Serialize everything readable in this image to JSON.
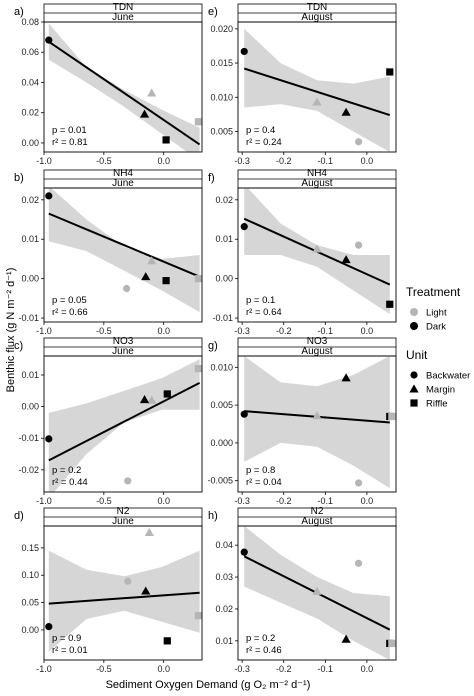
{
  "chart_data": {
    "type": "scatter",
    "xlabel": "Sediment Oxygen Demand (g O₂ m⁻² d⁻¹)",
    "ylabel": "Benthic flux (g N m⁻² d⁻¹)",
    "legend": {
      "placement": "right",
      "treatment_title": "Treatment",
      "treatment": [
        {
          "label": "Light",
          "color": "#b5b5b5"
        },
        {
          "label": "Dark",
          "color": "#000000"
        }
      ],
      "unit_title": "Unit",
      "unit": [
        {
          "label": "Backwater",
          "shape": "circle"
        },
        {
          "label": "Margin",
          "shape": "triangle"
        },
        {
          "label": "Riffle",
          "shape": "square"
        }
      ]
    },
    "panels": [
      {
        "letter": "a)",
        "variable": "TDN",
        "month": "June",
        "xlim": [
          -1.0,
          0.32
        ],
        "ylim": [
          -0.006,
          0.08
        ],
        "xticks": [
          -1.0,
          -0.5,
          0.0
        ],
        "xtick_labels": [
          "-1.0",
          "-0.5",
          "0.0"
        ],
        "yticks": [
          0.0,
          0.02,
          0.04,
          0.06,
          0.08
        ],
        "ytick_labels": [
          "0.00",
          "0.02",
          "0.04",
          "0.06",
          "0.08"
        ],
        "p": "p = 0.01",
        "r2": "r² = 0.81",
        "fit": {
          "x": [
            -0.96,
            0.3
          ],
          "y": [
            0.067,
            -0.001
          ]
        },
        "band_upper": [
          0.079,
          0.05,
          0.035,
          0.022,
          0.01
        ],
        "band_lower": [
          0.055,
          0.04,
          0.024,
          0.006,
          -0.012
        ],
        "points": [
          {
            "x": -0.96,
            "y": 0.068,
            "treatment": "Dark",
            "unit": "Backwater"
          },
          {
            "x": -0.1,
            "y": 0.033,
            "treatment": "Light",
            "unit": "Margin"
          },
          {
            "x": -0.16,
            "y": 0.019,
            "treatment": "Dark",
            "unit": "Margin"
          },
          {
            "x": 0.02,
            "y": 0.002,
            "treatment": "Dark",
            "unit": "Riffle"
          },
          {
            "x": 0.29,
            "y": 0.014,
            "treatment": "Light",
            "unit": "Riffle"
          }
        ]
      },
      {
        "letter": "e)",
        "variable": "TDN",
        "month": "August",
        "xlim": [
          -0.31,
          0.07
        ],
        "ylim": [
          0.002,
          0.021
        ],
        "xticks": [
          -0.3,
          -0.2,
          -0.1,
          0.0
        ],
        "xtick_labels": [
          "-0.3",
          "-0.2",
          "-0.1",
          "0.0"
        ],
        "yticks": [
          0.005,
          0.01,
          0.015,
          0.02
        ],
        "ytick_labels": [
          "0.005",
          "0.010",
          "0.015",
          "0.020"
        ],
        "p": "p = 0.4",
        "r2": "r² = 0.24",
        "fit": {
          "x": [
            -0.295,
            0.055
          ],
          "y": [
            0.0142,
            0.0074
          ]
        },
        "band_upper": [
          0.02,
          0.015,
          0.0125,
          0.012,
          0.013
        ],
        "band_lower": [
          0.0085,
          0.009,
          0.008,
          0.005,
          0.002
        ],
        "points": [
          {
            "x": -0.295,
            "y": 0.0167,
            "treatment": "Dark",
            "unit": "Backwater"
          },
          {
            "x": -0.12,
            "y": 0.0093,
            "treatment": "Light",
            "unit": "Margin"
          },
          {
            "x": -0.05,
            "y": 0.0078,
            "treatment": "Dark",
            "unit": "Margin"
          },
          {
            "x": -0.02,
            "y": 0.0035,
            "treatment": "Light",
            "unit": "Backwater"
          },
          {
            "x": 0.055,
            "y": 0.0137,
            "treatment": "Dark",
            "unit": "Riffle"
          }
        ]
      },
      {
        "letter": "b)",
        "variable": "NH4",
        "month": "June",
        "xlim": [
          -1.0,
          0.32
        ],
        "ylim": [
          -0.011,
          0.023
        ],
        "xticks": [
          -1.0,
          -0.5,
          0.0
        ],
        "xtick_labels": [
          "-1.0",
          "-0.5",
          "0.0"
        ],
        "yticks": [
          -0.01,
          0.0,
          0.01,
          0.02
        ],
        "ytick_labels": [
          "-0.01",
          "0.00",
          "0.01",
          "0.02"
        ],
        "p": "p = 0.05",
        "r2": "r² = 0.66",
        "fit": {
          "x": [
            -0.96,
            0.3
          ],
          "y": [
            0.0165,
            0.0005
          ]
        },
        "band_upper": [
          0.0235,
          0.015,
          0.008,
          0.005,
          0.006
        ],
        "band_lower": [
          0.0095,
          0.007,
          0.002,
          -0.003,
          -0.0085
        ],
        "points": [
          {
            "x": -0.96,
            "y": 0.021,
            "treatment": "Dark",
            "unit": "Backwater"
          },
          {
            "x": -0.31,
            "y": -0.0025,
            "treatment": "Light",
            "unit": "Backwater"
          },
          {
            "x": -0.1,
            "y": 0.0045,
            "treatment": "Light",
            "unit": "Margin"
          },
          {
            "x": -0.15,
            "y": 0.0005,
            "treatment": "Dark",
            "unit": "Margin"
          },
          {
            "x": 0.02,
            "y": -0.0005,
            "treatment": "Dark",
            "unit": "Riffle"
          },
          {
            "x": 0.29,
            "y": 0.0,
            "treatment": "Light",
            "unit": "Riffle"
          }
        ]
      },
      {
        "letter": "f)",
        "variable": "NH4",
        "month": "August",
        "xlim": [
          -0.31,
          0.07
        ],
        "ylim": [
          -0.011,
          0.023
        ],
        "xticks": [
          -0.3,
          -0.2,
          -0.1,
          0.0
        ],
        "xtick_labels": [
          "-0.3",
          "-0.2",
          "-0.1",
          "0.0"
        ],
        "yticks": [
          -0.01,
          0.0,
          0.01,
          0.02
        ],
        "ytick_labels": [
          "-0.01",
          "0.00",
          "0.01",
          "0.02"
        ],
        "p": "p = 0.1",
        "r2": "r² = 0.64",
        "fit": {
          "x": [
            -0.295,
            0.055
          ],
          "y": [
            0.0152,
            -0.0015
          ]
        },
        "band_upper": [
          0.024,
          0.014,
          0.0085,
          0.006,
          0.006
        ],
        "band_lower": [
          0.006,
          0.006,
          0.003,
          -0.003,
          -0.009
        ],
        "points": [
          {
            "x": -0.295,
            "y": 0.0132,
            "treatment": "Dark",
            "unit": "Backwater"
          },
          {
            "x": -0.12,
            "y": 0.0075,
            "treatment": "Light",
            "unit": "Margin"
          },
          {
            "x": -0.05,
            "y": 0.0048,
            "treatment": "Dark",
            "unit": "Margin"
          },
          {
            "x": -0.02,
            "y": 0.0085,
            "treatment": "Light",
            "unit": "Backwater"
          },
          {
            "x": 0.055,
            "y": -0.0065,
            "treatment": "Dark",
            "unit": "Riffle"
          }
        ]
      },
      {
        "letter": "c)",
        "variable": "NO3",
        "month": "June",
        "xlim": [
          -1.0,
          0.32
        ],
        "ylim": [
          -0.027,
          0.016
        ],
        "xticks": [
          -1.0,
          -0.5,
          0.0
        ],
        "xtick_labels": [
          "-1.0",
          "-0.5",
          "0.0"
        ],
        "yticks": [
          -0.02,
          -0.01,
          0.0,
          0.01
        ],
        "ytick_labels": [
          "-0.02",
          "-0.01",
          "0.00",
          "0.01"
        ],
        "p": "p = 0.2",
        "r2": "r² = 0.44",
        "fit": {
          "x": [
            -0.96,
            0.3
          ],
          "y": [
            -0.017,
            0.0075
          ]
        },
        "band_upper": [
          -0.002,
          0.001,
          0.005,
          0.009,
          0.015
        ],
        "band_lower": [
          -0.029,
          -0.015,
          -0.005,
          -0.001,
          -0.001
        ],
        "points": [
          {
            "x": -0.96,
            "y": -0.0102,
            "treatment": "Dark",
            "unit": "Backwater"
          },
          {
            "x": -0.3,
            "y": -0.0235,
            "treatment": "Light",
            "unit": "Backwater"
          },
          {
            "x": -0.1,
            "y": 0.002,
            "treatment": "Light",
            "unit": "Margin"
          },
          {
            "x": -0.16,
            "y": 0.0022,
            "treatment": "Dark",
            "unit": "Margin"
          },
          {
            "x": 0.03,
            "y": 0.004,
            "treatment": "Dark",
            "unit": "Riffle"
          },
          {
            "x": 0.29,
            "y": 0.012,
            "treatment": "Light",
            "unit": "Riffle"
          }
        ]
      },
      {
        "letter": "g)",
        "variable": "NO3",
        "month": "August",
        "xlim": [
          -0.31,
          0.07
        ],
        "ylim": [
          -0.0065,
          0.0115
        ],
        "xticks": [
          -0.3,
          -0.2,
          -0.1,
          0.0
        ],
        "xtick_labels": [
          "-0.3",
          "-0.2",
          "-0.1",
          "0.0"
        ],
        "yticks": [
          -0.005,
          0.0,
          0.005,
          0.01
        ],
        "ytick_labels": [
          "-0.005",
          "0.000",
          "0.005",
          "0.010"
        ],
        "p": "p = 0.8",
        "r2": "r² = 0.04",
        "fit": {
          "x": [
            -0.295,
            0.055
          ],
          "y": [
            0.0042,
            0.0027
          ]
        },
        "band_upper": [
          0.0115,
          0.008,
          0.0075,
          0.009,
          0.0115
        ],
        "band_lower": [
          -0.0025,
          0.0,
          -0.0005,
          -0.003,
          -0.006
        ],
        "points": [
          {
            "x": -0.295,
            "y": 0.0038,
            "treatment": "Dark",
            "unit": "Backwater"
          },
          {
            "x": -0.12,
            "y": 0.0036,
            "treatment": "Light",
            "unit": "Margin"
          },
          {
            "x": -0.05,
            "y": 0.0086,
            "treatment": "Dark",
            "unit": "Margin"
          },
          {
            "x": -0.02,
            "y": -0.0053,
            "treatment": "Light",
            "unit": "Backwater"
          },
          {
            "x": 0.055,
            "y": 0.0035,
            "treatment": "Dark",
            "unit": "Riffle"
          },
          {
            "x": 0.06,
            "y": 0.0035,
            "treatment": "Light",
            "unit": "Riffle"
          }
        ]
      },
      {
        "letter": "d)",
        "variable": "N2",
        "month": "June",
        "xlim": [
          -1.0,
          0.32
        ],
        "ylim": [
          -0.055,
          0.19
        ],
        "xticks": [
          -1.0,
          -0.5,
          0.0
        ],
        "xtick_labels": [
          "-1.0",
          "-0.5",
          "0.0"
        ],
        "yticks": [
          0.0,
          0.05,
          0.1,
          0.15
        ],
        "ytick_labels": [
          "0.00",
          "0.05",
          "0.10",
          "0.15"
        ],
        "p": "p = 0.9",
        "r2": "r² = 0.01",
        "fit": {
          "x": [
            -0.96,
            0.3
          ],
          "y": [
            0.048,
            0.068
          ]
        },
        "band_upper": [
          0.145,
          0.11,
          0.098,
          0.115,
          0.145
        ],
        "band_lower": [
          -0.04,
          0.02,
          0.035,
          0.015,
          -0.005
        ],
        "points": [
          {
            "x": -0.96,
            "y": 0.006,
            "treatment": "Dark",
            "unit": "Backwater"
          },
          {
            "x": -0.3,
            "y": 0.089,
            "treatment": "Light",
            "unit": "Backwater"
          },
          {
            "x": -0.12,
            "y": 0.178,
            "treatment": "Light",
            "unit": "Margin"
          },
          {
            "x": -0.15,
            "y": 0.071,
            "treatment": "Dark",
            "unit": "Margin"
          },
          {
            "x": 0.03,
            "y": -0.02,
            "treatment": "Dark",
            "unit": "Riffle"
          },
          {
            "x": 0.29,
            "y": 0.026,
            "treatment": "Light",
            "unit": "Riffle"
          }
        ]
      },
      {
        "letter": "h)",
        "variable": "N2",
        "month": "August",
        "xlim": [
          -0.31,
          0.07
        ],
        "ylim": [
          0.004,
          0.046
        ],
        "xticks": [
          -0.3,
          -0.2,
          -0.1,
          0.0
        ],
        "xtick_labels": [
          "-0.3",
          "-0.2",
          "-0.1",
          "0.0"
        ],
        "yticks": [
          0.01,
          0.02,
          0.03,
          0.04
        ],
        "ytick_labels": [
          "0.01",
          "0.02",
          "0.03",
          "0.04"
        ],
        "p": "p = 0.2",
        "r2": "r² = 0.46",
        "fit": {
          "x": [
            -0.295,
            0.055
          ],
          "y": [
            0.0365,
            0.0135
          ]
        },
        "band_upper": [
          0.046,
          0.037,
          0.03,
          0.025,
          0.024
        ],
        "band_lower": [
          0.027,
          0.022,
          0.017,
          0.01,
          0.004
        ],
        "points": [
          {
            "x": -0.295,
            "y": 0.0378,
            "treatment": "Dark",
            "unit": "Backwater"
          },
          {
            "x": -0.12,
            "y": 0.0255,
            "treatment": "Light",
            "unit": "Margin"
          },
          {
            "x": -0.05,
            "y": 0.0105,
            "treatment": "Dark",
            "unit": "Margin"
          },
          {
            "x": -0.02,
            "y": 0.0343,
            "treatment": "Light",
            "unit": "Backwater"
          },
          {
            "x": 0.055,
            "y": 0.0092,
            "treatment": "Dark",
            "unit": "Riffle"
          },
          {
            "x": 0.06,
            "y": 0.0092,
            "treatment": "Light",
            "unit": "Riffle"
          }
        ]
      }
    ]
  }
}
